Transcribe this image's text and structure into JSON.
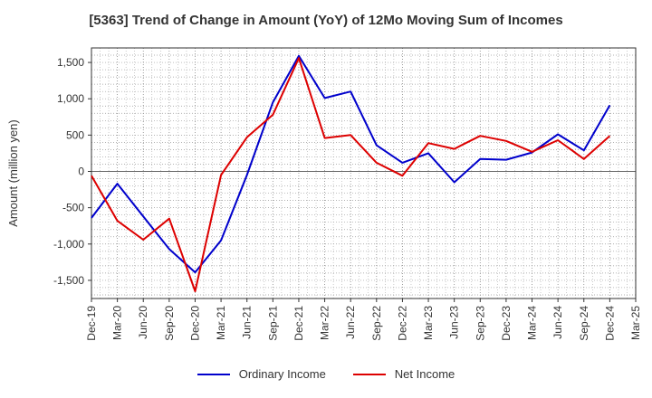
{
  "chart_data": {
    "type": "line",
    "title": "[5363]  Trend of Change in Amount (YoY) of 12Mo Moving Sum of Incomes",
    "xlabel": "",
    "ylabel": "Amount (million yen)",
    "x": [
      "Dec-19",
      "Mar-20",
      "Jun-20",
      "Sep-20",
      "Dec-20",
      "Mar-21",
      "Jun-21",
      "Sep-21",
      "Dec-21",
      "Mar-22",
      "Jun-22",
      "Sep-22",
      "Dec-22",
      "Mar-23",
      "Jun-23",
      "Sep-23",
      "Dec-23",
      "Mar-24",
      "Jun-24",
      "Sep-24",
      "Dec-24",
      "Mar-25"
    ],
    "ylim": [
      -1750,
      1700
    ],
    "yticks": [
      -1500,
      -1000,
      -500,
      0,
      500,
      1000,
      1500
    ],
    "ytick_labels": [
      "-1,500",
      "-1,000",
      "-500",
      "0",
      "500",
      "1,000",
      "1,500"
    ],
    "grid": true,
    "legend_position": "bottom",
    "series": [
      {
        "name": "Ordinary Income",
        "color": "#0000cc",
        "values": [
          -640,
          -170,
          -620,
          -1070,
          -1390,
          -950,
          -50,
          950,
          1590,
          1010,
          1100,
          360,
          120,
          250,
          -150,
          170,
          160,
          260,
          510,
          290,
          910,
          null
        ]
      },
      {
        "name": "Net Income",
        "color": "#dd0000",
        "values": [
          -60,
          -680,
          -940,
          -650,
          -1650,
          -50,
          470,
          780,
          1560,
          460,
          500,
          120,
          -60,
          390,
          310,
          490,
          420,
          270,
          430,
          170,
          490,
          null
        ]
      }
    ]
  }
}
